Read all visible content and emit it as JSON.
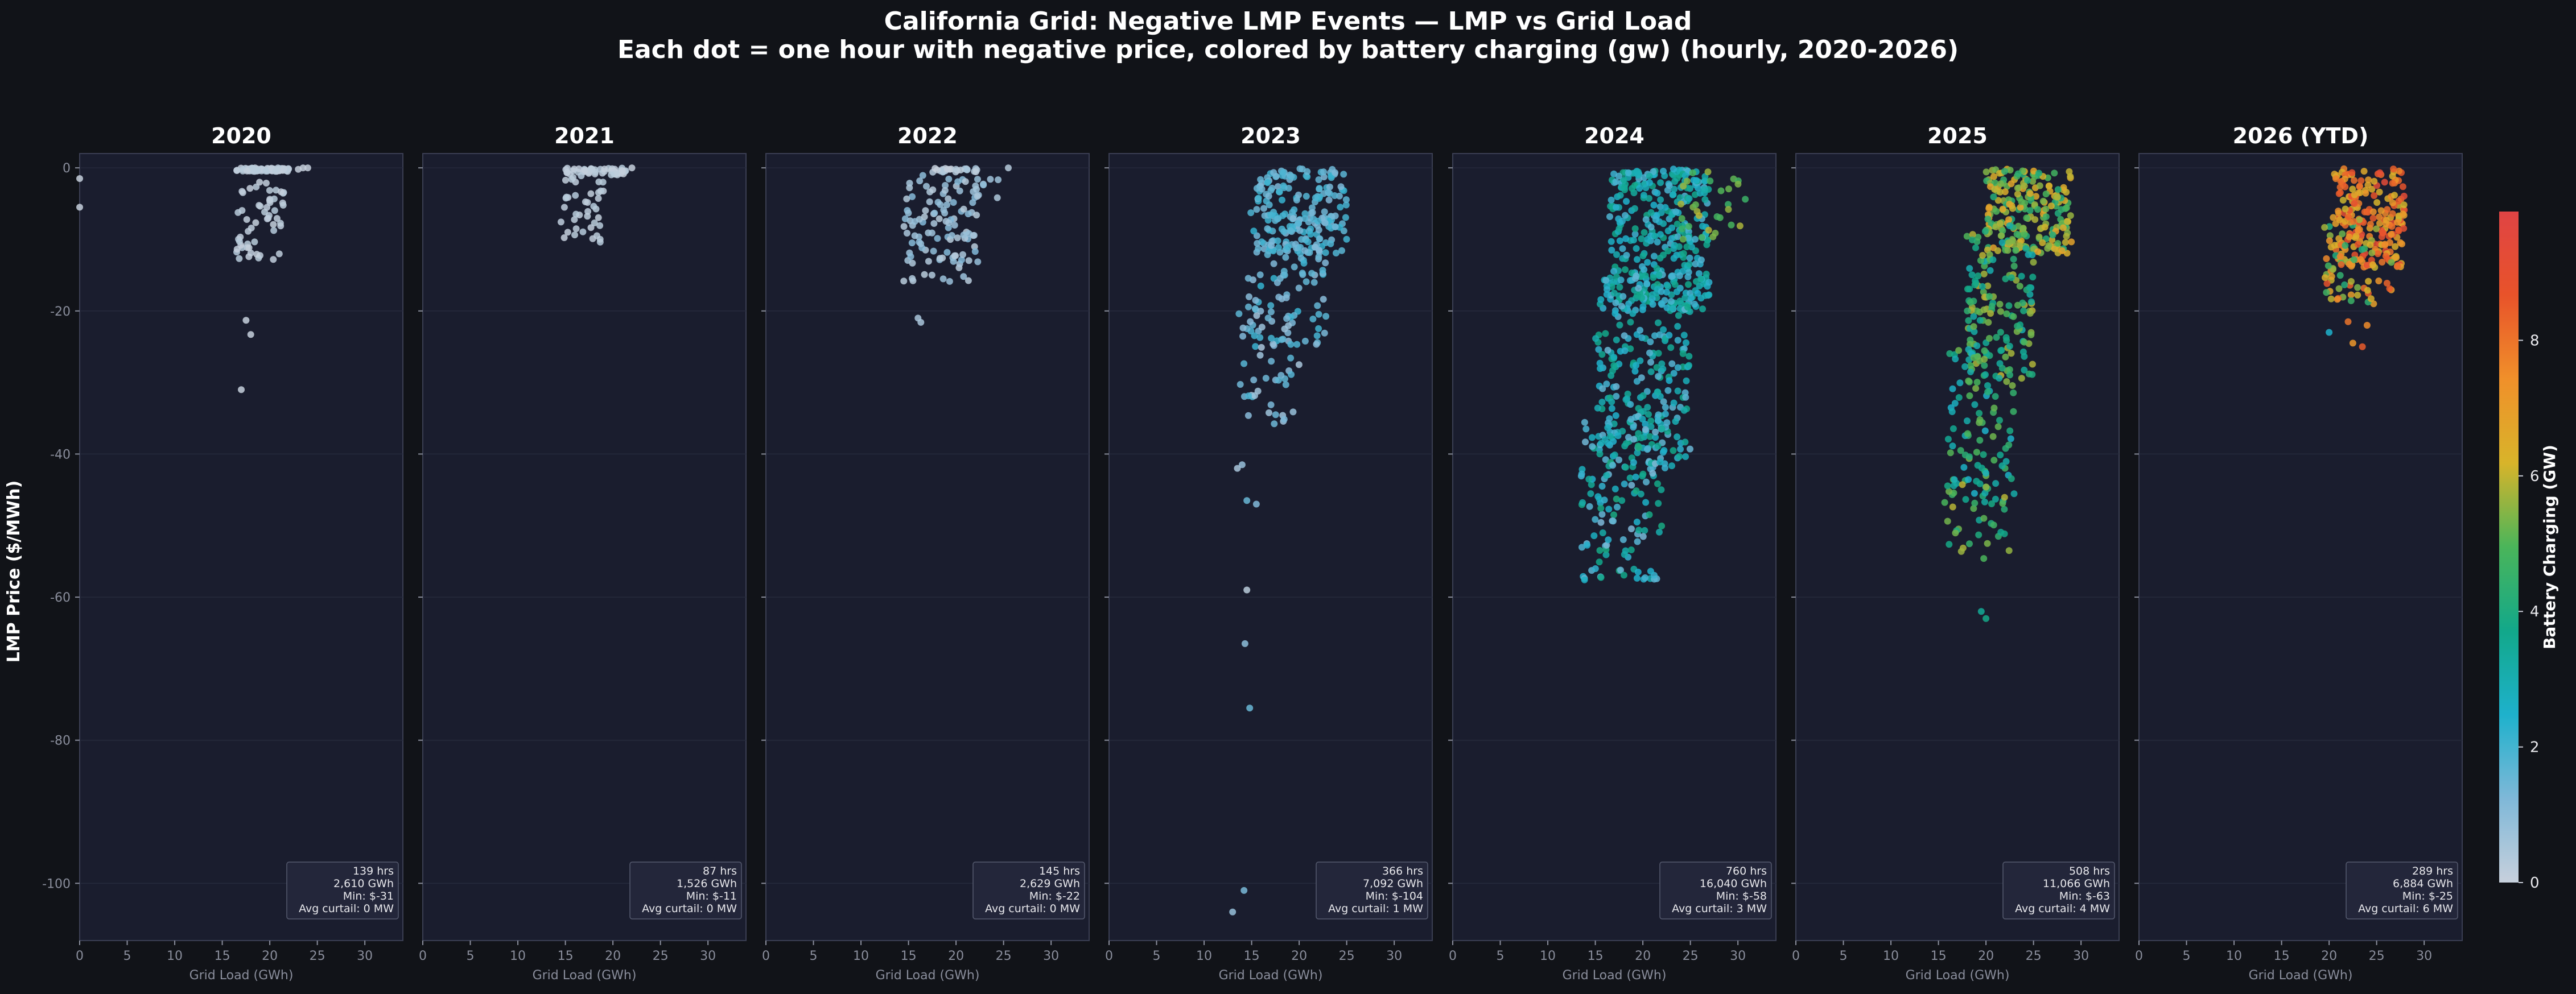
{
  "title": {
    "line1": "California Grid: Negative LMP Events — LMP vs Grid Load",
    "line2": "Each dot = one hour with negative price, colored by battery charging (gw) (hourly, 2020-2026)"
  },
  "colors": {
    "background": "#111318",
    "panel_bg": "#1a1d2e",
    "panel_border": "#3a3e52",
    "grid": "#262a3c",
    "tick_text": "#8a8e9c",
    "stats_box_bg": "#23263a",
    "colormap": [
      "#c7d0dc",
      "#7fb8d8",
      "#1eb1cc",
      "#12a88a",
      "#4ab55a",
      "#d8b42a",
      "#f0902a",
      "#e8532a",
      "#e04444"
    ]
  },
  "chart_data": {
    "type": "scatter",
    "ylabel": "LMP Price ($/MWh)",
    "xlabel": "Grid Load (GWh)",
    "xlim": [
      0,
      34
    ],
    "ylim": [
      -108,
      2
    ],
    "xticks": [
      0,
      5,
      10,
      15,
      20,
      25,
      30
    ],
    "yticks": [
      0,
      -20,
      -40,
      -60,
      -80,
      -100
    ],
    "colorbar": {
      "label": "Battery Charging (GW)",
      "range": [
        0,
        9.9
      ],
      "ticks": [
        0,
        2,
        4,
        6,
        8
      ]
    },
    "panels": [
      {
        "title": "2020",
        "stats": [
          "139 hrs",
          "2,610 GWh",
          "Min: $-31",
          "Avg curtail: 0 MW"
        ],
        "clusters": [
          {
            "n": 85,
            "x": [
              16.5,
              22
            ],
            "y": [
              -0.5,
              0
            ],
            "c": [
              0,
              0.3
            ]
          },
          {
            "n": 55,
            "x": [
              16.5,
              21.5
            ],
            "y": [
              -13,
              -1
            ],
            "c": [
              0,
              0.3
            ]
          }
        ],
        "points": [
          [
            0,
            -1.5,
            0
          ],
          [
            0,
            -5.5,
            0
          ],
          [
            17.5,
            -21.3,
            0
          ],
          [
            18,
            -23.3,
            0
          ],
          [
            17,
            -31,
            0
          ],
          [
            23,
            -0.2,
            0
          ],
          [
            23.5,
            0,
            0
          ],
          [
            24,
            0,
            0
          ]
        ]
      },
      {
        "title": "2021",
        "stats": [
          "87 hrs",
          "1,526 GWh",
          "Min: $-11",
          "Avg curtail: 0 MW"
        ],
        "clusters": [
          {
            "n": 45,
            "x": [
              15,
              21.5
            ],
            "y": [
              -1,
              0
            ],
            "c": [
              0,
              0.3
            ]
          },
          {
            "n": 40,
            "x": [
              14.5,
              19
            ],
            "y": [
              -10.5,
              -1
            ],
            "c": [
              0,
              0.3
            ]
          }
        ],
        "points": [
          [
            22,
            0,
            0
          ],
          [
            21,
            -0.4,
            0
          ]
        ]
      },
      {
        "title": "2022",
        "stats": [
          "145 hrs",
          "2,629 GWh",
          "Min: $-22",
          "Avg curtail: 0 MW"
        ],
        "clusters": [
          {
            "n": 25,
            "x": [
              17.5,
              22.5
            ],
            "y": [
              -0.6,
              0
            ],
            "c": [
              0,
              0.6
            ]
          },
          {
            "n": 110,
            "x": [
              14.5,
              22.5
            ],
            "y": [
              -16,
              -1
            ],
            "c": [
              0.2,
              1.2
            ]
          },
          {
            "n": 8,
            "x": [
              22,
              25
            ],
            "y": [
              -6,
              -1
            ],
            "c": [
              0.3,
              1
            ]
          }
        ],
        "points": [
          [
            16,
            -21,
            0.5
          ],
          [
            16.3,
            -21.6,
            0.5
          ],
          [
            25.5,
            0,
            0.3
          ]
        ]
      },
      {
        "title": "2023",
        "stats": [
          "366 hrs",
          "7,092 GWh",
          "Min: $-104",
          "Avg curtail: 1 MW"
        ],
        "clusters": [
          {
            "n": 180,
            "x": [
              15.5,
              25
            ],
            "y": [
              -12,
              0
            ],
            "c": [
              1.2,
              2.2
            ]
          },
          {
            "n": 110,
            "x": [
              14.5,
              23
            ],
            "y": [
              -25,
              -6
            ],
            "c": [
              1.0,
              2.2
            ]
          },
          {
            "n": 45,
            "x": [
              13.5,
              20
            ],
            "y": [
              -36,
              -20
            ],
            "c": [
              0.5,
              2
            ]
          }
        ],
        "points": [
          [
            14,
            -41.5,
            0.8
          ],
          [
            13.5,
            -42,
            0.5
          ],
          [
            14.5,
            -46.5,
            1.5
          ],
          [
            15.5,
            -47,
            1.2
          ],
          [
            14.5,
            -59,
            0.2
          ],
          [
            14.3,
            -66.5,
            1
          ],
          [
            14.8,
            -75.5,
            1.5
          ],
          [
            14.2,
            -101,
            1.3
          ],
          [
            13,
            -104,
            0.8
          ]
        ]
      },
      {
        "title": "2024",
        "stats": [
          "760 hrs",
          "16,040 GWh",
          "Min: $-58",
          "Avg curtail: 3 MW"
        ],
        "clusters": [
          {
            "n": 340,
            "x": [
              16.5,
              27
            ],
            "y": [
              -20,
              0
            ],
            "c": [
              1.8,
              3.8
            ]
          },
          {
            "n": 260,
            "x": [
              15,
              25
            ],
            "y": [
              -42,
              -15
            ],
            "c": [
              1.5,
              3.8
            ]
          },
          {
            "n": 130,
            "x": [
              13.5,
              22
            ],
            "y": [
              -58,
              -35
            ],
            "c": [
              1.2,
              4.0
            ]
          },
          {
            "n": 30,
            "x": [
              24,
              31
            ],
            "y": [
              -10,
              0
            ],
            "c": [
              4.5,
              6.0
            ]
          }
        ],
        "points": []
      },
      {
        "title": "2025",
        "stats": [
          "508 hrs",
          "11,066 GWh",
          "Min: $-63",
          "Avg curtail: 4 MW"
        ],
        "clusters": [
          {
            "n": 220,
            "x": [
              20,
              29
            ],
            "y": [
              -12,
              0
            ],
            "c": [
              4.0,
              6.8
            ]
          },
          {
            "n": 150,
            "x": [
              18,
              25
            ],
            "y": [
              -30,
              -8
            ],
            "c": [
              3.0,
              6.0
            ]
          },
          {
            "n": 100,
            "x": [
              16,
              23
            ],
            "y": [
              -48,
              -25
            ],
            "c": [
              2.5,
              5.5
            ]
          },
          {
            "n": 35,
            "x": [
              15.5,
              22.5
            ],
            "y": [
              -55,
              -44
            ],
            "c": [
              3.0,
              6.0
            ]
          }
        ],
        "points": [
          [
            19.5,
            -62,
            3.5
          ],
          [
            20,
            -63,
            3.8
          ]
        ]
      },
      {
        "title": "2026 (YTD)",
        "stats": [
          "289 hrs",
          "6,884 GWh",
          "Min: $-25",
          "Avg curtail: 6 MW"
        ],
        "clusters": [
          {
            "n": 200,
            "x": [
              20.5,
              28
            ],
            "y": [
              -14,
              0
            ],
            "c": [
              6.0,
              9.3
            ]
          },
          {
            "n": 80,
            "x": [
              19.5,
              27
            ],
            "y": [
              -19,
              -6
            ],
            "c": [
              4.0,
              8.8
            ]
          }
        ],
        "points": [
          [
            20,
            -23,
            2.5
          ],
          [
            23.5,
            -25,
            8.5
          ],
          [
            22.5,
            -24.5,
            7.2
          ],
          [
            22,
            -21.5,
            8.0
          ],
          [
            24,
            -22,
            7.5
          ]
        ]
      }
    ]
  }
}
